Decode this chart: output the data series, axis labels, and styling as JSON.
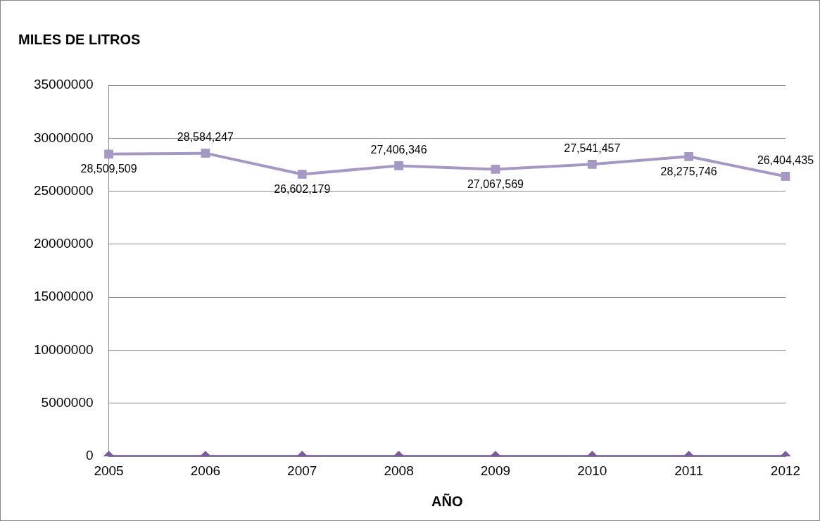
{
  "chart_data": {
    "type": "line",
    "title": "MILES DE LITROS",
    "xlabel": "AÑO",
    "categories": [
      "2005",
      "2006",
      "2007",
      "2008",
      "2009",
      "2010",
      "2011",
      "2012"
    ],
    "series": [
      {
        "color": "#a599c4",
        "marker": "square",
        "values": [
          28509509,
          28584247,
          26602179,
          27406346,
          27067569,
          27541457,
          28275746,
          26404435
        ],
        "value_labels": [
          "28,509,509",
          "28,584,247",
          "26,602,179",
          "27,406,346",
          "27,067,569",
          "27,541,457",
          "28,275,746",
          "26,404,435"
        ]
      },
      {
        "color": "#7a5c9c",
        "marker": "diamond",
        "values": [
          0,
          0,
          0,
          0,
          0,
          0,
          0,
          0
        ]
      }
    ],
    "ylim": [
      0,
      35000000
    ],
    "yticks": [
      0,
      5000000,
      10000000,
      15000000,
      20000000,
      25000000,
      30000000,
      35000000
    ],
    "grid": "y",
    "legend": false
  }
}
